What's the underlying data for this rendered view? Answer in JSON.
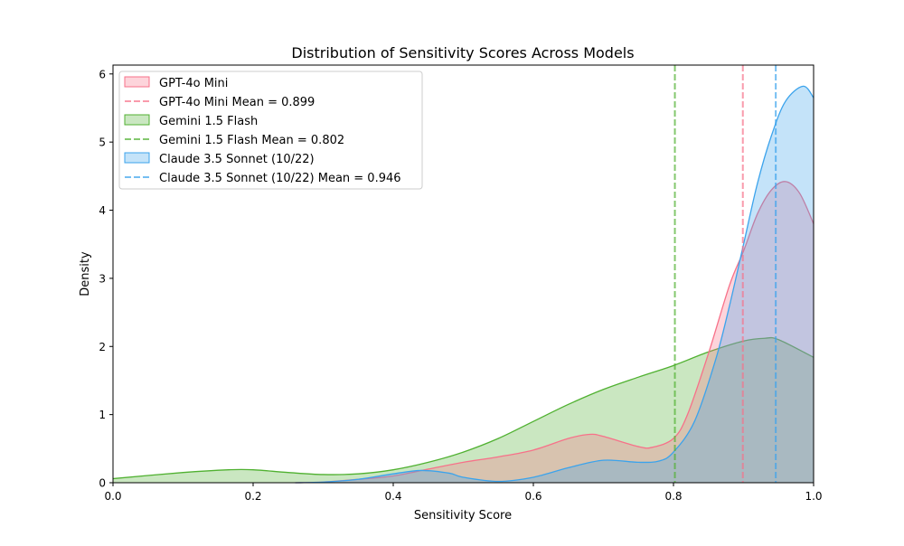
{
  "chart_data": {
    "type": "area",
    "title": "Distribution of Sensitivity Scores Across Models",
    "xlabel": "Sensitivity Score",
    "ylabel": "Density",
    "xlim": [
      0,
      1.0
    ],
    "ylim": [
      0,
      6.13
    ],
    "xticks": [
      "0.0",
      "0.2",
      "0.4",
      "0.6",
      "0.8",
      "1.0"
    ],
    "yticks": [
      "0",
      "1",
      "2",
      "3",
      "4",
      "5",
      "6"
    ],
    "grid": false,
    "legend_position": "top-left",
    "series": [
      {
        "name": "GPT-4o Mini",
        "mean_label": "GPT-4o Mini Mean = 0.899",
        "mean": 0.899,
        "color": "#f77189",
        "x": [
          0.26,
          0.3,
          0.35,
          0.4,
          0.45,
          0.5,
          0.55,
          0.6,
          0.65,
          0.68,
          0.7,
          0.75,
          0.77,
          0.8,
          0.82,
          0.85,
          0.88,
          0.9,
          0.92,
          0.94,
          0.96,
          0.98,
          1.0
        ],
        "y": [
          0,
          0.01,
          0.05,
          0.1,
          0.2,
          0.3,
          0.38,
          0.48,
          0.65,
          0.71,
          0.68,
          0.53,
          0.52,
          0.65,
          1.0,
          1.9,
          2.9,
          3.4,
          3.95,
          4.3,
          4.42,
          4.25,
          3.8
        ]
      },
      {
        "name": "Gemini 1.5 Flash",
        "mean_label": "Gemini 1.5 Flash Mean = 0.802",
        "mean": 0.802,
        "color": "#50b131",
        "x": [
          0,
          0.1,
          0.165,
          0.2,
          0.25,
          0.3,
          0.35,
          0.4,
          0.45,
          0.5,
          0.55,
          0.6,
          0.65,
          0.7,
          0.75,
          0.8,
          0.85,
          0.9,
          0.93,
          0.95,
          1.0
        ],
        "y": [
          0.06,
          0.15,
          0.19,
          0.19,
          0.15,
          0.12,
          0.13,
          0.19,
          0.3,
          0.45,
          0.65,
          0.9,
          1.15,
          1.37,
          1.55,
          1.72,
          1.92,
          2.08,
          2.12,
          2.1,
          1.84
        ]
      },
      {
        "name": "Claude 3.5 Sonnet (10/22)",
        "mean_label": "Claude 3.5 Sonnet (10/22) Mean = 0.946",
        "mean": 0.946,
        "color": "#3ba3ec",
        "x": [
          0.26,
          0.3,
          0.35,
          0.4,
          0.44,
          0.48,
          0.5,
          0.55,
          0.6,
          0.65,
          0.7,
          0.75,
          0.78,
          0.8,
          0.83,
          0.86,
          0.88,
          0.9,
          0.92,
          0.94,
          0.96,
          0.985,
          1.0
        ],
        "y": [
          0,
          0.01,
          0.05,
          0.13,
          0.18,
          0.14,
          0.08,
          0.02,
          0.08,
          0.22,
          0.33,
          0.3,
          0.32,
          0.45,
          0.9,
          1.8,
          2.6,
          3.5,
          4.4,
          5.1,
          5.6,
          5.82,
          5.65
        ]
      }
    ]
  }
}
